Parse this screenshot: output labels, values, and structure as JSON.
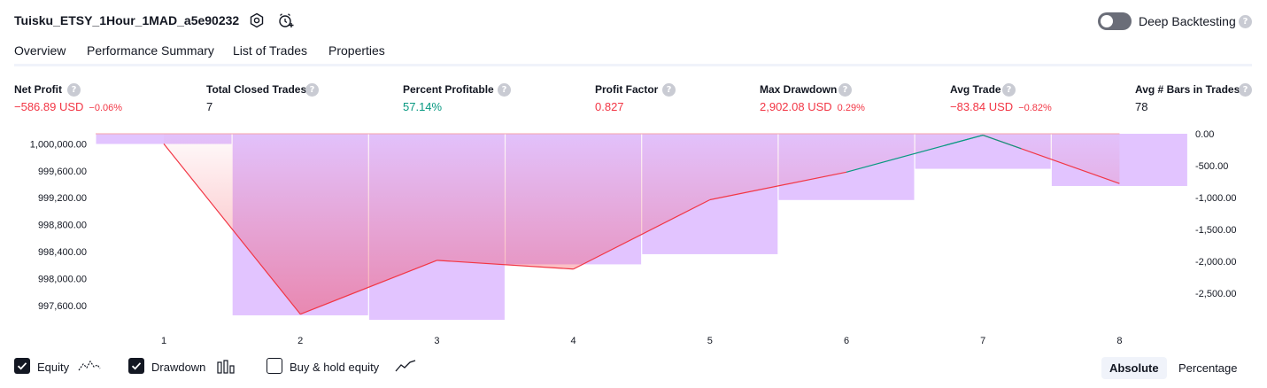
{
  "header": {
    "strategy_title": "Tuisku_ETSY_1Hour_1MAD_a5e90232",
    "icons": [
      "settings-icon",
      "alarm-add-icon"
    ],
    "deep_backtesting_label": "Deep Backtesting",
    "deep_backtesting_enabled": false,
    "help_glyph": "?"
  },
  "tabs": [
    {
      "label": "Overview",
      "active": true
    },
    {
      "label": "Performance Summary",
      "active": false
    },
    {
      "label": "List of Trades",
      "active": false
    },
    {
      "label": "Properties",
      "active": false
    }
  ],
  "metrics": [
    {
      "label": "Net Profit",
      "value": "−586.89 USD",
      "pct": "−0.06%",
      "color": "#f23645"
    },
    {
      "label": "Total Closed Trades",
      "value": "7",
      "pct": "",
      "color": "#131722"
    },
    {
      "label": "Percent Profitable",
      "value": "57.14%",
      "pct": "",
      "color": "#089981"
    },
    {
      "label": "Profit Factor",
      "value": "0.827",
      "pct": "",
      "color": "#f23645"
    },
    {
      "label": "Max Drawdown",
      "value": "2,902.08 USD",
      "pct": "0.29%",
      "color": "#f23645"
    },
    {
      "label": "Avg Trade",
      "value": "−83.84 USD",
      "pct": "−0.82%",
      "color": "#f23645"
    },
    {
      "label": "Avg # Bars in Trades",
      "value": "78",
      "pct": "",
      "color": "#131722"
    }
  ],
  "chart_data": {
    "type": "line",
    "x": [
      1,
      2,
      3,
      4,
      5,
      6,
      7,
      8
    ],
    "x_tick_labels": [
      "1",
      "2",
      "3",
      "4",
      "5",
      "6",
      "7",
      "8"
    ],
    "left_axis_ticks": [
      "1,000,000.00",
      "999,600.00",
      "999,200.00",
      "998,800.00",
      "998,400.00",
      "998,000.00",
      "997,600.00"
    ],
    "right_axis_ticks": [
      "0.00",
      "-500.00",
      "-1,000.00",
      "-1,500.00",
      "-2,000.00",
      "-2,500.00"
    ],
    "left_ylim": [
      997400,
      1000150
    ],
    "right_ylim": [
      -2920,
      0
    ],
    "equity_line_start": 1000150,
    "series": [
      {
        "name": "Equity",
        "axis": "left",
        "values": [
          1000000,
          997470,
          998270,
          998140,
          999170,
          999580,
          1000130,
          999410
        ],
        "color_up": "#089981",
        "color_down": "#f23645"
      },
      {
        "name": "Drawdown",
        "axis": "right",
        "values": [
          -160,
          -2850,
          -2920,
          -2050,
          -1890,
          -1040,
          -550,
          -820
        ],
        "color": "#ce9cff"
      }
    ]
  },
  "legend": {
    "items": [
      {
        "label": "Equity",
        "checked": true,
        "icon": "equity-line-icon"
      },
      {
        "label": "Drawdown",
        "checked": true,
        "icon": "drawdown-bars-icon"
      },
      {
        "label": "Buy & hold equity",
        "checked": false,
        "icon": "buy-hold-line-icon"
      }
    ]
  },
  "scale_modes": [
    {
      "label": "Absolute",
      "selected": true
    },
    {
      "label": "Percentage",
      "selected": false
    }
  ]
}
